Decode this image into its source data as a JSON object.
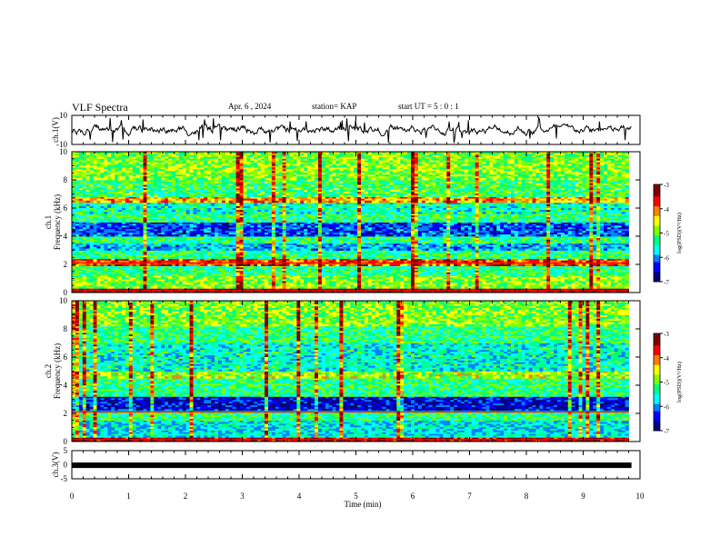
{
  "header": {
    "title": "VLF Spectra",
    "date": "Apr. 6  , 2024",
    "station": "station= KAP",
    "start": "start  UT  =   5 : 0  : 1"
  },
  "chart_data": [
    {
      "type": "line",
      "name": "ch1-waveform",
      "ylabel": "ch.1(V)",
      "ylim": [
        -10,
        10
      ],
      "yticks": [
        "10",
        "-10"
      ],
      "xlim": [
        0,
        10
      ],
      "approx_amplitude": [
        -4,
        4
      ]
    },
    {
      "type": "heatmap",
      "name": "ch1-spectrogram",
      "ylabel_line1": "ch.1",
      "ylabel_line2": "Frequency (kHz)",
      "ylim": [
        0,
        10
      ],
      "yticks": [
        "0",
        "2",
        "4",
        "6",
        "8",
        "10"
      ],
      "xlim": [
        0,
        9.8
      ],
      "colorbar": {
        "label": "log(PSD)(V²/Hz)",
        "range": [
          -7,
          -3
        ],
        "ticks": [
          "-3",
          "-4",
          "-5",
          "-6",
          "-7"
        ]
      },
      "bands": [
        {
          "from": 0.0,
          "to": 0.3,
          "level": 0.95
        },
        {
          "from": 0.3,
          "to": 1.2,
          "level": 0.55
        },
        {
          "from": 1.2,
          "to": 1.9,
          "level": 0.45
        },
        {
          "from": 1.9,
          "to": 2.4,
          "level": 0.8
        },
        {
          "from": 2.4,
          "to": 3.0,
          "level": 0.45
        },
        {
          "from": 3.0,
          "to": 3.5,
          "level": 0.3
        },
        {
          "from": 3.5,
          "to": 4.0,
          "level": 0.45
        },
        {
          "from": 4.0,
          "to": 5.0,
          "level": 0.2
        },
        {
          "from": 5.0,
          "to": 5.6,
          "level": 0.45
        },
        {
          "from": 5.6,
          "to": 6.4,
          "level": 0.4
        },
        {
          "from": 6.4,
          "to": 6.8,
          "level": 0.72
        },
        {
          "from": 6.8,
          "to": 8.0,
          "level": 0.48
        },
        {
          "from": 8.0,
          "to": 10.0,
          "level": 0.55
        }
      ]
    },
    {
      "type": "heatmap",
      "name": "ch2-spectrogram",
      "ylabel_line1": "ch.2",
      "ylabel_line2": "Frequency (kHz)",
      "ylim": [
        0,
        10
      ],
      "yticks": [
        "0",
        "2",
        "4",
        "6",
        "8",
        "10"
      ],
      "xlim": [
        0,
        9.8
      ],
      "colorbar": {
        "label": "log(PSD)(V²/Hz)",
        "range": [
          -7,
          -3
        ],
        "ticks": [
          "-3",
          "-4",
          "-5",
          "-6",
          "-7"
        ]
      },
      "bands": [
        {
          "from": 0.0,
          "to": 0.3,
          "level": 0.9
        },
        {
          "from": 0.3,
          "to": 1.5,
          "level": 0.35
        },
        {
          "from": 1.5,
          "to": 2.2,
          "level": 0.45
        },
        {
          "from": 2.2,
          "to": 3.2,
          "level": 0.12
        },
        {
          "from": 3.2,
          "to": 4.5,
          "level": 0.45
        },
        {
          "from": 4.5,
          "to": 5.0,
          "level": 0.58
        },
        {
          "from": 5.0,
          "to": 7.0,
          "level": 0.38
        },
        {
          "from": 7.0,
          "to": 8.2,
          "level": 0.45
        },
        {
          "from": 8.2,
          "to": 10.0,
          "level": 0.55
        }
      ]
    },
    {
      "type": "line",
      "name": "ch3-waveform",
      "ylabel": "ch.3(V)",
      "ylim": [
        -5,
        5
      ],
      "yticks": [
        "5",
        "0",
        "-5"
      ],
      "xlim": [
        0,
        10
      ],
      "constant_value": -0.2
    }
  ],
  "xaxis": {
    "label": "Time  (min)",
    "range": [
      0,
      10
    ],
    "ticks": [
      "0",
      "1",
      "2",
      "3",
      "4",
      "5",
      "6",
      "7",
      "8",
      "9",
      "10"
    ]
  },
  "colors": {
    "colormap": [
      "#000080",
      "#0000ff",
      "#0080ff",
      "#00ffff",
      "#00ff80",
      "#80ff00",
      "#ffff00",
      "#ff8000",
      "#ff0000",
      "#800000"
    ]
  }
}
